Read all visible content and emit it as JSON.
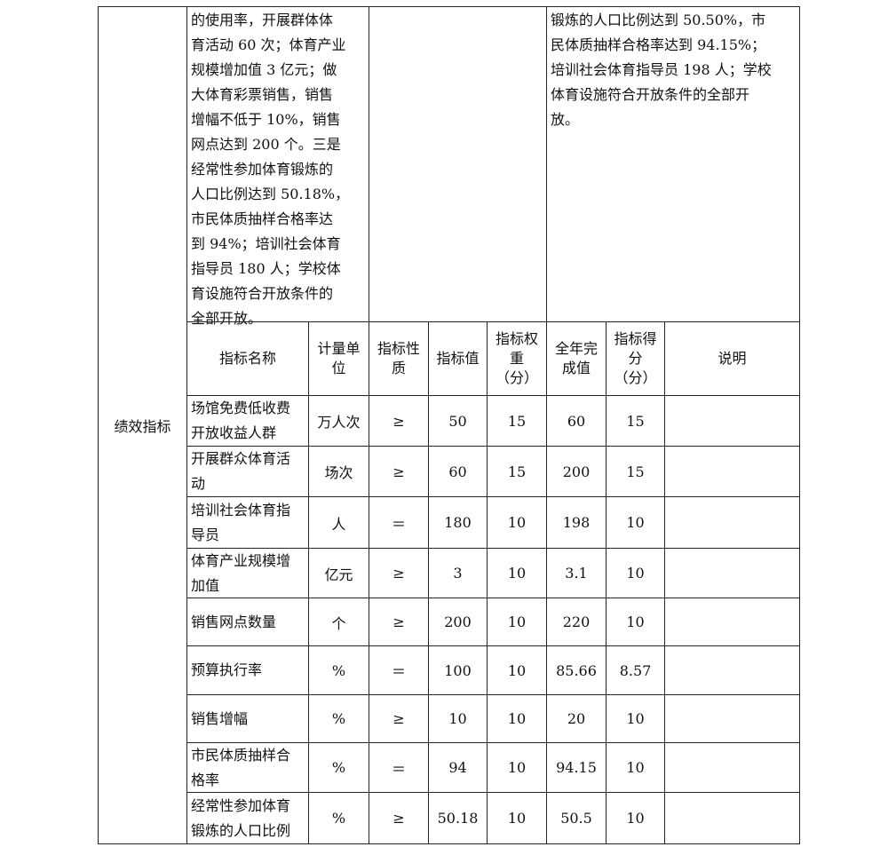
{
  "section_label": "绩效指标",
  "target_text_lines": [
    "的使用率，开展群体体",
    "育活动 60 次；体育产业",
    "规模增加值 3 亿元；做",
    "大体育彩票销售，销售",
    "增幅不低于 10%，销售",
    "网点达到 200 个。三是",
    "经常性参加体育锻炼的",
    "人口比例达到 50.18%，",
    "市民体质抽样合格率达",
    "到 94%；培训社会体育",
    "指导员 180 人；学校体",
    "育设施符合开放条件的",
    "全部开放。"
  ],
  "actual_text_lines": [
    "锻炼的人口比例达到 50.50%，市",
    "民体质抽样合格率达到 94.15%；",
    "培训社会体育指导员 198 人；学校",
    "体育设施符合开放条件的全部开",
    "放。"
  ],
  "headers": [
    "指标名称",
    "计量单位",
    "指标性质",
    "指标值",
    "指标权重（分）",
    "全年完成值",
    "指标得分（分）",
    "说明"
  ],
  "rows": [
    [
      "场馆免费低收费开放收益人群",
      "万人次",
      "≥",
      "50",
      "15",
      "60",
      "15",
      ""
    ],
    [
      "开展群众体育活动",
      "场次",
      "≥",
      "60",
      "15",
      "200",
      "15",
      ""
    ],
    [
      "培训社会体育指导员",
      "人",
      "＝",
      "180",
      "10",
      "198",
      "10",
      ""
    ],
    [
      "体育产业规模增加值",
      "亿元",
      "≥",
      "3",
      "10",
      "3.1",
      "10",
      ""
    ],
    [
      "销售网点数量",
      "个",
      "≥",
      "200",
      "10",
      "220",
      "10",
      ""
    ],
    [
      "预算执行率",
      "%",
      "＝",
      "100",
      "10",
      "85.66",
      "8.57",
      ""
    ],
    [
      "销售增幅",
      "%",
      "≥",
      "10",
      "10",
      "20",
      "10",
      ""
    ],
    [
      "市民体质抽样合格率",
      "%",
      "＝",
      "94",
      "10",
      "94.15",
      "10",
      ""
    ],
    [
      "经常性参加体育锻炼的人口比例",
      "%",
      "≥",
      "50.18",
      "10",
      "50.5",
      "10",
      ""
    ]
  ]
}
